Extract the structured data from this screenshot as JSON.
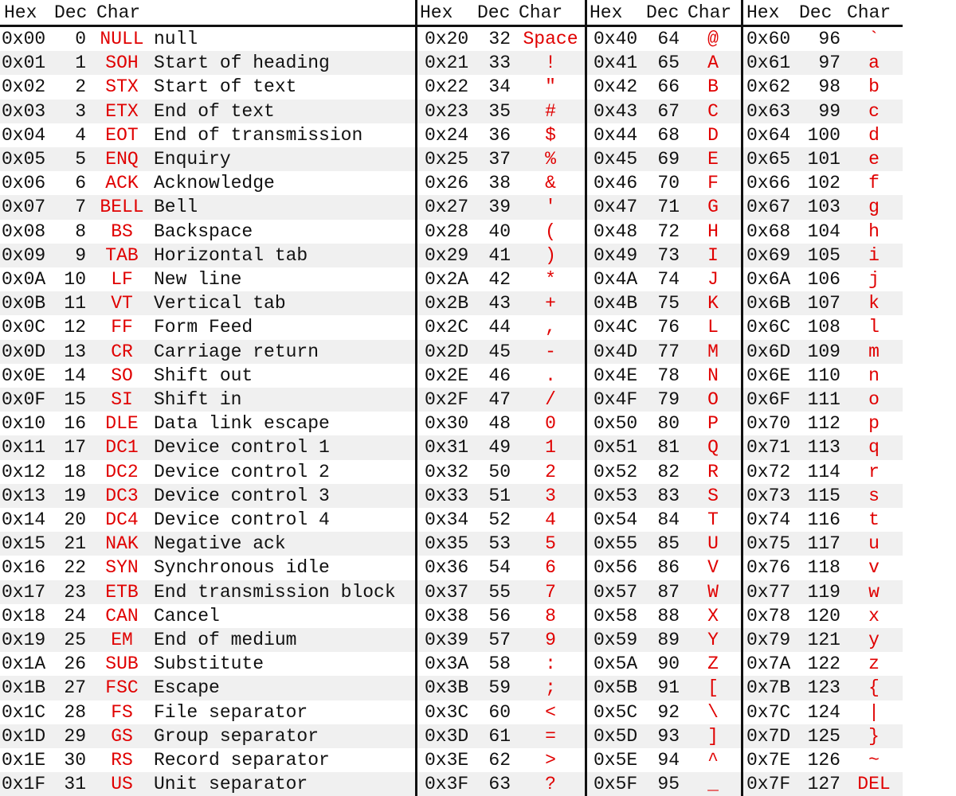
{
  "groups": [
    {
      "headers": [
        "Hex",
        "Dec",
        "Char"
      ],
      "rows": [
        [
          "0x00",
          0,
          "NULL",
          "null"
        ],
        [
          "0x01",
          1,
          "SOH",
          "Start of heading"
        ],
        [
          "0x02",
          2,
          "STX",
          "Start of text"
        ],
        [
          "0x03",
          3,
          "ETX",
          "End of text"
        ],
        [
          "0x04",
          4,
          "EOT",
          "End of transmission"
        ],
        [
          "0x05",
          5,
          "ENQ",
          "Enquiry"
        ],
        [
          "0x06",
          6,
          "ACK",
          "Acknowledge"
        ],
        [
          "0x07",
          7,
          "BELL",
          "Bell"
        ],
        [
          "0x08",
          8,
          "BS",
          "Backspace"
        ],
        [
          "0x09",
          9,
          "TAB",
          "Horizontal tab"
        ],
        [
          "0x0A",
          10,
          "LF",
          "New line"
        ],
        [
          "0x0B",
          11,
          "VT",
          "Vertical tab"
        ],
        [
          "0x0C",
          12,
          "FF",
          "Form Feed"
        ],
        [
          "0x0D",
          13,
          "CR",
          "Carriage return"
        ],
        [
          "0x0E",
          14,
          "SO",
          "Shift out"
        ],
        [
          "0x0F",
          15,
          "SI",
          "Shift in"
        ],
        [
          "0x10",
          16,
          "DLE",
          "Data link escape"
        ],
        [
          "0x11",
          17,
          "DC1",
          "Device control 1"
        ],
        [
          "0x12",
          18,
          "DC2",
          "Device control 2"
        ],
        [
          "0x13",
          19,
          "DC3",
          "Device control 3"
        ],
        [
          "0x14",
          20,
          "DC4",
          "Device control 4"
        ],
        [
          "0x15",
          21,
          "NAK",
          "Negative ack"
        ],
        [
          "0x16",
          22,
          "SYN",
          "Synchronous idle"
        ],
        [
          "0x17",
          23,
          "ETB",
          "End transmission block"
        ],
        [
          "0x18",
          24,
          "CAN",
          "Cancel"
        ],
        [
          "0x19",
          25,
          "EM",
          "End of medium"
        ],
        [
          "0x1A",
          26,
          "SUB",
          "Substitute"
        ],
        [
          "0x1B",
          27,
          "FSC",
          "Escape"
        ],
        [
          "0x1C",
          28,
          "FS",
          "File separator"
        ],
        [
          "0x1D",
          29,
          "GS",
          "Group separator"
        ],
        [
          "0x1E",
          30,
          "RS",
          "Record separator"
        ],
        [
          "0x1F",
          31,
          "US",
          "Unit separator"
        ]
      ]
    },
    {
      "headers": [
        "Hex",
        "Dec",
        "Char"
      ],
      "rows": [
        [
          "0x20",
          32,
          "Space"
        ],
        [
          "0x21",
          33,
          "!"
        ],
        [
          "0x22",
          34,
          "\""
        ],
        [
          "0x23",
          35,
          "#"
        ],
        [
          "0x24",
          36,
          "$"
        ],
        [
          "0x25",
          37,
          "%"
        ],
        [
          "0x26",
          38,
          "&"
        ],
        [
          "0x27",
          39,
          "'"
        ],
        [
          "0x28",
          40,
          "("
        ],
        [
          "0x29",
          41,
          ")"
        ],
        [
          "0x2A",
          42,
          "*"
        ],
        [
          "0x2B",
          43,
          "+"
        ],
        [
          "0x2C",
          44,
          ","
        ],
        [
          "0x2D",
          45,
          "-"
        ],
        [
          "0x2E",
          46,
          "."
        ],
        [
          "0x2F",
          47,
          "/"
        ],
        [
          "0x30",
          48,
          "0"
        ],
        [
          "0x31",
          49,
          "1"
        ],
        [
          "0x32",
          50,
          "2"
        ],
        [
          "0x33",
          51,
          "3"
        ],
        [
          "0x34",
          52,
          "4"
        ],
        [
          "0x35",
          53,
          "5"
        ],
        [
          "0x36",
          54,
          "6"
        ],
        [
          "0x37",
          55,
          "7"
        ],
        [
          "0x38",
          56,
          "8"
        ],
        [
          "0x39",
          57,
          "9"
        ],
        [
          "0x3A",
          58,
          ":"
        ],
        [
          "0x3B",
          59,
          ";"
        ],
        [
          "0x3C",
          60,
          "<"
        ],
        [
          "0x3D",
          61,
          "="
        ],
        [
          "0x3E",
          62,
          ">"
        ],
        [
          "0x3F",
          63,
          "?"
        ]
      ]
    },
    {
      "headers": [
        "Hex",
        "Dec",
        "Char"
      ],
      "rows": [
        [
          "0x40",
          64,
          "@"
        ],
        [
          "0x41",
          65,
          "A"
        ],
        [
          "0x42",
          66,
          "B"
        ],
        [
          "0x43",
          67,
          "C"
        ],
        [
          "0x44",
          68,
          "D"
        ],
        [
          "0x45",
          69,
          "E"
        ],
        [
          "0x46",
          70,
          "F"
        ],
        [
          "0x47",
          71,
          "G"
        ],
        [
          "0x48",
          72,
          "H"
        ],
        [
          "0x49",
          73,
          "I"
        ],
        [
          "0x4A",
          74,
          "J"
        ],
        [
          "0x4B",
          75,
          "K"
        ],
        [
          "0x4C",
          76,
          "L"
        ],
        [
          "0x4D",
          77,
          "M"
        ],
        [
          "0x4E",
          78,
          "N"
        ],
        [
          "0x4F",
          79,
          "O"
        ],
        [
          "0x50",
          80,
          "P"
        ],
        [
          "0x51",
          81,
          "Q"
        ],
        [
          "0x52",
          82,
          "R"
        ],
        [
          "0x53",
          83,
          "S"
        ],
        [
          "0x54",
          84,
          "T"
        ],
        [
          "0x55",
          85,
          "U"
        ],
        [
          "0x56",
          86,
          "V"
        ],
        [
          "0x57",
          87,
          "W"
        ],
        [
          "0x58",
          88,
          "X"
        ],
        [
          "0x59",
          89,
          "Y"
        ],
        [
          "0x5A",
          90,
          "Z"
        ],
        [
          "0x5B",
          91,
          "["
        ],
        [
          "0x5C",
          92,
          "\\"
        ],
        [
          "0x5D",
          93,
          "]"
        ],
        [
          "0x5E",
          94,
          "^"
        ],
        [
          "0x5F",
          95,
          "_"
        ]
      ]
    },
    {
      "headers": [
        "Hex",
        "Dec",
        "Char"
      ],
      "rows": [
        [
          "0x60",
          96,
          "`"
        ],
        [
          "0x61",
          97,
          "a"
        ],
        [
          "0x62",
          98,
          "b"
        ],
        [
          "0x63",
          99,
          "c"
        ],
        [
          "0x64",
          100,
          "d"
        ],
        [
          "0x65",
          101,
          "e"
        ],
        [
          "0x66",
          102,
          "f"
        ],
        [
          "0x67",
          103,
          "g"
        ],
        [
          "0x68",
          104,
          "h"
        ],
        [
          "0x69",
          105,
          "i"
        ],
        [
          "0x6A",
          106,
          "j"
        ],
        [
          "0x6B",
          107,
          "k"
        ],
        [
          "0x6C",
          108,
          "l"
        ],
        [
          "0x6D",
          109,
          "m"
        ],
        [
          "0x6E",
          110,
          "n"
        ],
        [
          "0x6F",
          111,
          "o"
        ],
        [
          "0x70",
          112,
          "p"
        ],
        [
          "0x71",
          113,
          "q"
        ],
        [
          "0x72",
          114,
          "r"
        ],
        [
          "0x73",
          115,
          "s"
        ],
        [
          "0x74",
          116,
          "t"
        ],
        [
          "0x75",
          117,
          "u"
        ],
        [
          "0x76",
          118,
          "v"
        ],
        [
          "0x77",
          119,
          "w"
        ],
        [
          "0x78",
          120,
          "x"
        ],
        [
          "0x79",
          121,
          "y"
        ],
        [
          "0x7A",
          122,
          "z"
        ],
        [
          "0x7B",
          123,
          "{"
        ],
        [
          "0x7C",
          124,
          "|"
        ],
        [
          "0x7D",
          125,
          "}"
        ],
        [
          "0x7E",
          126,
          "~"
        ],
        [
          "0x7F",
          127,
          "DEL"
        ]
      ]
    }
  ]
}
